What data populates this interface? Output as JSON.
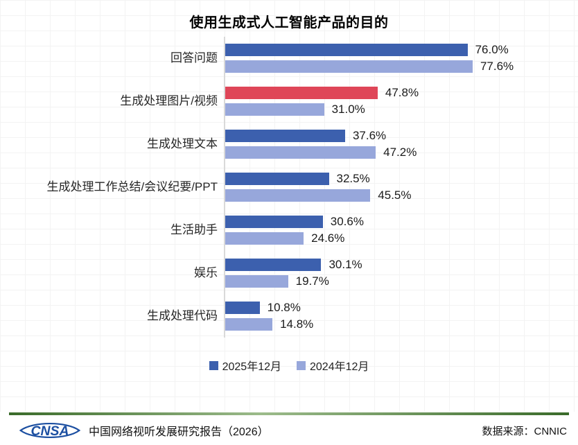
{
  "title": "使用生成式人工智能产品的目的",
  "chart_data": {
    "type": "bar",
    "orientation": "horizontal",
    "categories": [
      "回答问题",
      "生成处理图片/视频",
      "生成处理文本",
      "生成处理工作总结/会议纪要/PPT",
      "生活助手",
      "娱乐",
      "生成处理代码"
    ],
    "series": [
      {
        "name": "2025年12月",
        "color": "#3c60ae",
        "values": [
          76.0,
          47.8,
          37.6,
          32.5,
          30.6,
          30.1,
          10.8
        ]
      },
      {
        "name": "2024年12月",
        "color": "#97a7db",
        "values": [
          77.6,
          31.0,
          47.2,
          45.5,
          24.6,
          19.7,
          14.8
        ]
      }
    ],
    "highlight": {
      "series_index": 0,
      "category_index": 1,
      "color": "#df4658"
    },
    "value_suffix": "%",
    "xlim": [
      0,
      80
    ],
    "legend_position": "bottom",
    "grid": "faint background grid, light gray axis line on left"
  },
  "legend": {
    "items": [
      {
        "label": "2025年12月",
        "color": "#3c60ae"
      },
      {
        "label": "2024年12月",
        "color": "#97a7db"
      }
    ]
  },
  "footer": {
    "logo_text": "CNSA",
    "logo_color": "#1c4fa1",
    "report_title": "中国网络视听发展研究报告（2026）",
    "source_label": "数据来源：CNNIC",
    "separator_color": "#3a6b2a"
  }
}
